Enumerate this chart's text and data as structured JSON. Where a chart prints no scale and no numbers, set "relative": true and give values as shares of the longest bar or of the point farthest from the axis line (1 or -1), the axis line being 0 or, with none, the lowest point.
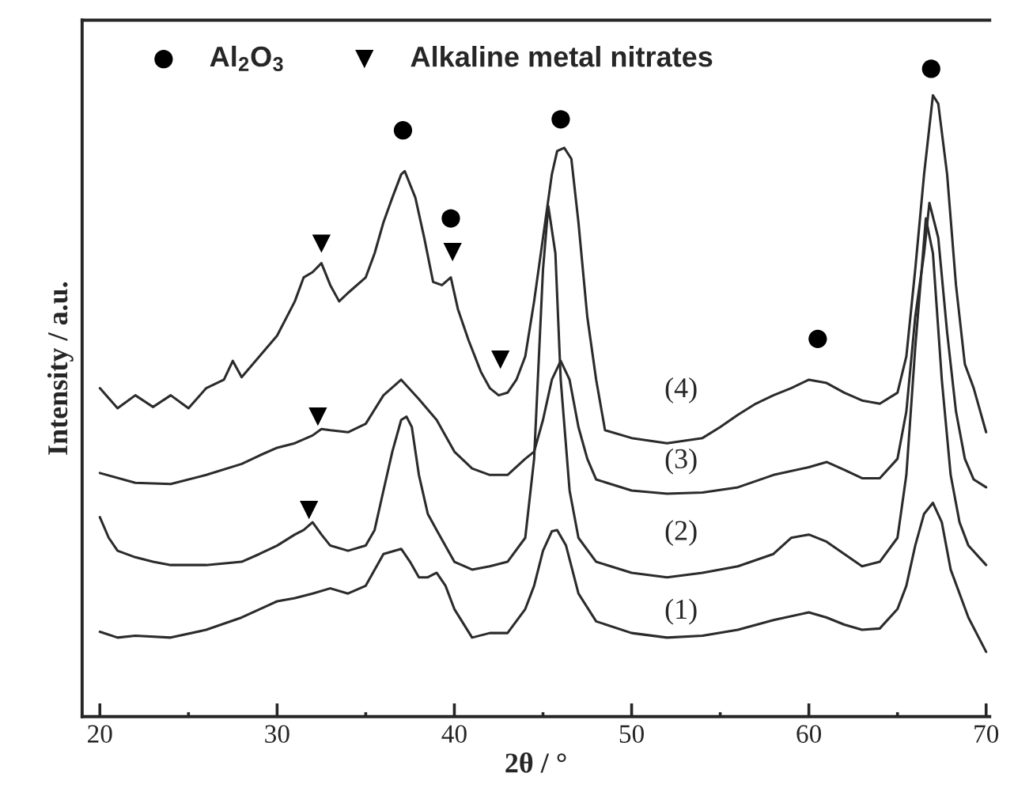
{
  "chart_data": {
    "type": "line",
    "relative": true,
    "xlabel": "2θ / °",
    "ylabel": "Intensity / a.u.",
    "xlim": [
      19,
      70.2
    ],
    "xticks": [
      20,
      30,
      40,
      50,
      60,
      70
    ],
    "legend": "top left",
    "grid": false,
    "series": [
      {
        "color": "#2b2b2b",
        "x": [
          20,
          21,
          22,
          23,
          24,
          25,
          26,
          27,
          27.5,
          28,
          29,
          30,
          31,
          31.5,
          32,
          32.5,
          33,
          33.5,
          34,
          35,
          35.5,
          36,
          36.5,
          37,
          37.2,
          37.8,
          38.3,
          38.8,
          39.3,
          39.8,
          40.2,
          40.8,
          41.5,
          42,
          42.5,
          43,
          43.5,
          44,
          44.5,
          45,
          45.5,
          45.8,
          46.2,
          46.6,
          47,
          47.5,
          48,
          48.5,
          50,
          52,
          54,
          55,
          56,
          57,
          58,
          59,
          60,
          61,
          62,
          63,
          64,
          65,
          65.5,
          66,
          66.5,
          67,
          67.3,
          67.8,
          68.3,
          68.8,
          69.3,
          70
        ],
        "values": [
          0.507,
          0.476,
          0.496,
          0.478,
          0.496,
          0.476,
          0.507,
          0.52,
          0.549,
          0.524,
          0.556,
          0.588,
          0.641,
          0.678,
          0.686,
          0.7,
          0.666,
          0.641,
          0.654,
          0.678,
          0.715,
          0.763,
          0.801,
          0.837,
          0.842,
          0.801,
          0.739,
          0.671,
          0.666,
          0.678,
          0.629,
          0.581,
          0.532,
          0.507,
          0.496,
          0.5,
          0.52,
          0.556,
          0.641,
          0.739,
          0.837,
          0.873,
          0.878,
          0.861,
          0.763,
          0.617,
          0.52,
          0.442,
          0.43,
          0.422,
          0.43,
          0.447,
          0.466,
          0.483,
          0.496,
          0.507,
          0.52,
          0.515,
          0.5,
          0.488,
          0.483,
          0.5,
          0.556,
          0.69,
          0.837,
          0.959,
          0.946,
          0.837,
          0.666,
          0.544,
          0.507,
          0.439
        ]
      },
      {
        "color": "#2b2b2b",
        "x": [
          20,
          22,
          24,
          26,
          28,
          29,
          30,
          31,
          32,
          32.5,
          33,
          34,
          35,
          36,
          37,
          38,
          39,
          40,
          41,
          42,
          43,
          44,
          44.5,
          45,
          45.5,
          46,
          46.5,
          47,
          47.5,
          48,
          50,
          52,
          54,
          56,
          58,
          60,
          61,
          62,
          63,
          64,
          65,
          65.5,
          66,
          66.5,
          66.8,
          67.3,
          67.8,
          68.3,
          68.8,
          69.3,
          70
        ],
        "values": [
          0.376,
          0.361,
          0.359,
          0.373,
          0.39,
          0.403,
          0.415,
          0.422,
          0.434,
          0.444,
          0.442,
          0.439,
          0.452,
          0.496,
          0.52,
          0.49,
          0.458,
          0.409,
          0.383,
          0.373,
          0.373,
          0.398,
          0.409,
          0.458,
          0.52,
          0.549,
          0.52,
          0.447,
          0.398,
          0.366,
          0.349,
          0.344,
          0.346,
          0.354,
          0.373,
          0.385,
          0.393,
          0.381,
          0.368,
          0.368,
          0.398,
          0.471,
          0.617,
          0.715,
          0.793,
          0.739,
          0.593,
          0.471,
          0.398,
          0.366,
          0.354
        ]
      },
      {
        "color": "#2b2b2b",
        "x": [
          20,
          20.5,
          21,
          22,
          23,
          24,
          26,
          28,
          29,
          30,
          31,
          31.5,
          32,
          32.5,
          33,
          34,
          35,
          35.5,
          36,
          36.5,
          37,
          37.3,
          37.6,
          38,
          38.5,
          39,
          40,
          41,
          42,
          43,
          44,
          44.5,
          45,
          45.3,
          45.7,
          46,
          46.5,
          47,
          48,
          50,
          52,
          54,
          56,
          58,
          59,
          60,
          61,
          62,
          63,
          64,
          65,
          65.5,
          66,
          66.6,
          67,
          67.5,
          68,
          68.5,
          69,
          70
        ],
        "values": [
          0.308,
          0.276,
          0.256,
          0.246,
          0.239,
          0.234,
          0.234,
          0.239,
          0.251,
          0.264,
          0.281,
          0.288,
          0.3,
          0.281,
          0.264,
          0.256,
          0.264,
          0.288,
          0.349,
          0.409,
          0.458,
          0.463,
          0.447,
          0.373,
          0.313,
          0.288,
          0.239,
          0.227,
          0.232,
          0.239,
          0.276,
          0.398,
          0.69,
          0.788,
          0.715,
          0.52,
          0.349,
          0.276,
          0.239,
          0.222,
          0.215,
          0.222,
          0.232,
          0.251,
          0.276,
          0.281,
          0.27,
          0.251,
          0.232,
          0.239,
          0.276,
          0.373,
          0.569,
          0.769,
          0.715,
          0.52,
          0.373,
          0.3,
          0.264,
          0.234
        ]
      },
      {
        "color": "#2b2b2b",
        "x": [
          20,
          21,
          22,
          24,
          26,
          28,
          30,
          31,
          32,
          33,
          34,
          35,
          36,
          37,
          37.5,
          38,
          38.5,
          39,
          39.5,
          40,
          41,
          42,
          43,
          44,
          44.5,
          45,
          45.5,
          45.8,
          46.3,
          47,
          48,
          50,
          52,
          54,
          56,
          58,
          60,
          61,
          62,
          63,
          64,
          65,
          65.5,
          66,
          66.5,
          67,
          67.5,
          68,
          69,
          70
        ],
        "values": [
          0.131,
          0.122,
          0.125,
          0.122,
          0.134,
          0.153,
          0.178,
          0.183,
          0.19,
          0.198,
          0.19,
          0.202,
          0.251,
          0.259,
          0.239,
          0.215,
          0.215,
          0.222,
          0.202,
          0.166,
          0.122,
          0.129,
          0.129,
          0.166,
          0.202,
          0.256,
          0.286,
          0.288,
          0.264,
          0.19,
          0.147,
          0.129,
          0.122,
          0.125,
          0.134,
          0.149,
          0.161,
          0.153,
          0.142,
          0.134,
          0.136,
          0.166,
          0.202,
          0.264,
          0.313,
          0.33,
          0.3,
          0.227,
          0.153,
          0.1
        ]
      },
      {
        "type": "scatter",
        "name": "Al$_{2}$O$_{3}$",
        "marker": "circle",
        "color": "#000000",
        "x": [
          37.1,
          39.8,
          46.0,
          60.5,
          66.9
        ],
        "values": [
          0.905,
          0.769,
          0.922,
          0.583,
          1.0
        ]
      },
      {
        "type": "scatter",
        "name": "Alkaline metal nitrates",
        "marker": "triangle",
        "color": "#000000",
        "x": [
          32.5,
          39.9,
          42.6,
          32.3,
          31.8
        ],
        "values": [
          0.73,
          0.717,
          0.551,
          0.463,
          0.319
        ]
      }
    ],
    "annotations": [
      "(4)",
      "(3)",
      "(2)",
      "(1)"
    ]
  }
}
